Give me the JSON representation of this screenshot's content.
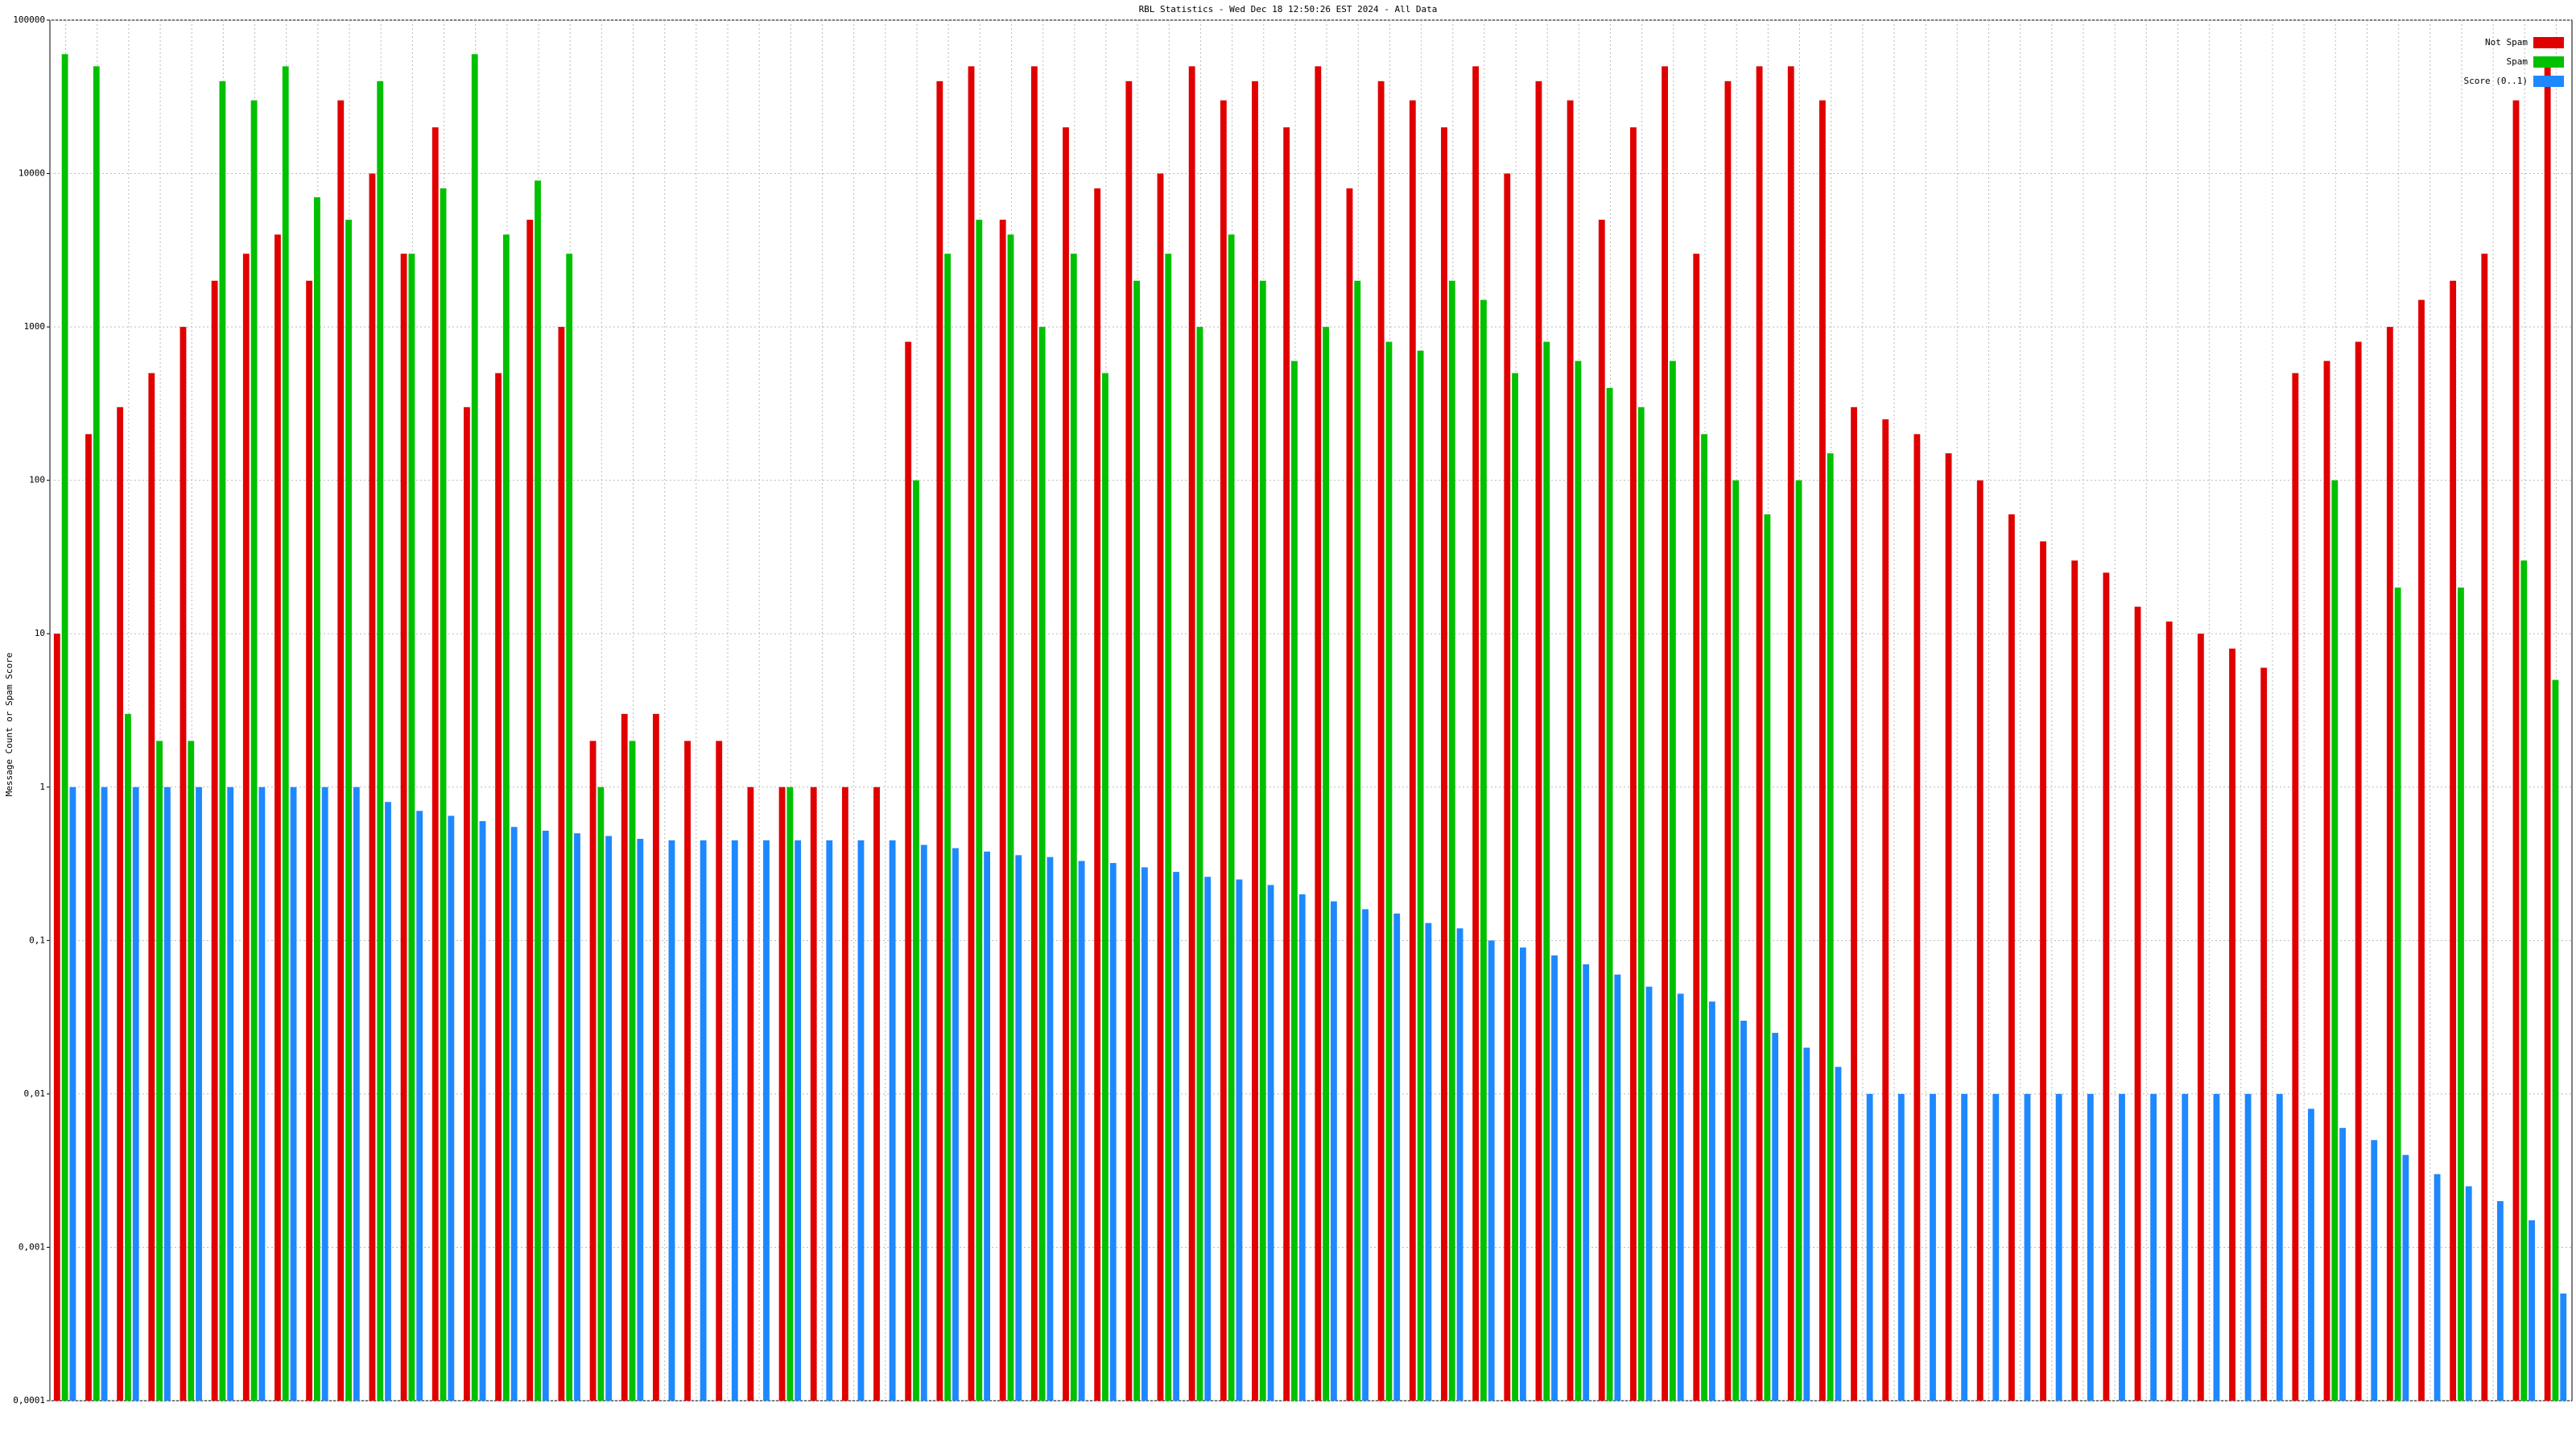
{
  "chart_data": {
    "type": "bar",
    "title": "RBL Statistics - Wed Dec 18 12:50:26 EST 2024 - All Data",
    "y_label": "Message Count or Spam Score",
    "log_scale": true,
    "grid": true,
    "legend": "top-right",
    "ylim": [
      0.0001,
      100000
    ],
    "yticks": [
      {
        "value": 0.0001,
        "label": "0,0001"
      },
      {
        "value": 0.001,
        "label": "0,001"
      },
      {
        "value": 0.01,
        "label": "0,01"
      },
      {
        "value": 0.1,
        "label": "0,1"
      },
      1,
      10,
      100,
      1000,
      10000,
      100000
    ],
    "categories": [
      null,
      null,
      null,
      null,
      null,
      null,
      null,
      null,
      null,
      null,
      null,
      null,
      null,
      null,
      null,
      null,
      null,
      null,
      null,
      null,
      null,
      null,
      null,
      null,
      null,
      null,
      null,
      null,
      null,
      null,
      null,
      null,
      null,
      null,
      null,
      null,
      null,
      null,
      null,
      null,
      null,
      null,
      null,
      null,
      null,
      null,
      null,
      null,
      null,
      null,
      null,
      null,
      null,
      null,
      null,
      null,
      null,
      null,
      null,
      null,
      null,
      null,
      null,
      null,
      null,
      null,
      null,
      null,
      null,
      null,
      null,
      null,
      null,
      null,
      null,
      null,
      null,
      null,
      null,
      null
    ],
    "series": [
      {
        "name": "Not Spam",
        "color": "#e00000",
        "values": [
          10,
          200,
          300,
          500,
          1000,
          2000,
          3000,
          4000,
          2000,
          30000,
          10000,
          3000,
          20000,
          300,
          500,
          5000,
          1000,
          2,
          3,
          3,
          2,
          2,
          1,
          1,
          1,
          1,
          1,
          800,
          40000,
          50000,
          5000,
          50000,
          20000,
          8000,
          40000,
          10000,
          50000,
          30000,
          40000,
          20000,
          50000,
          8000,
          40000,
          30000,
          20000,
          50000,
          10000,
          40000,
          30000,
          5000,
          20000,
          50000,
          3000,
          40000,
          50000,
          50000,
          30000,
          300,
          250,
          200,
          150,
          100,
          60,
          40,
          30,
          25,
          15,
          12,
          10,
          8,
          6,
          500,
          600,
          800,
          1000,
          1500,
          2000,
          3000,
          30000,
          50000
        ]
      },
      {
        "name": "Spam",
        "color": "#00c000",
        "values": [
          60000,
          50000,
          3,
          2,
          2,
          40000,
          30000,
          50000,
          7000,
          5000,
          40000,
          3000,
          8000,
          60000,
          4000,
          9000,
          3000,
          1,
          2,
          null,
          null,
          null,
          null,
          1,
          null,
          null,
          null,
          100,
          3000,
          5000,
          4000,
          1000,
          3000,
          500,
          2000,
          3000,
          1000,
          4000,
          2000,
          600,
          1000,
          2000,
          800,
          700,
          2000,
          1500,
          500,
          800,
          600,
          400,
          300,
          600,
          200,
          100,
          60,
          100,
          150,
          null,
          null,
          null,
          null,
          null,
          null,
          null,
          null,
          null,
          null,
          null,
          null,
          null,
          null,
          null,
          100,
          null,
          20,
          null,
          20,
          null,
          30,
          5
        ]
      },
      {
        "name": "Score (0..1)",
        "color": "#1e88ff",
        "values": [
          1,
          1,
          1,
          1,
          1,
          1,
          1,
          1,
          1,
          1,
          0.8,
          0.7,
          0.65,
          0.6,
          0.55,
          0.52,
          0.5,
          0.48,
          0.46,
          0.45,
          0.45,
          0.45,
          0.45,
          0.45,
          0.45,
          0.45,
          0.45,
          0.42,
          0.4,
          0.38,
          0.36,
          0.35,
          0.33,
          0.32,
          0.3,
          0.28,
          0.26,
          0.25,
          0.23,
          0.2,
          0.18,
          0.16,
          0.15,
          0.13,
          0.12,
          0.1,
          0.09,
          0.08,
          0.07,
          0.06,
          0.05,
          0.045,
          0.04,
          0.03,
          0.025,
          0.02,
          0.015,
          0.01,
          0.01,
          0.01,
          0.01,
          0.01,
          0.01,
          0.01,
          0.01,
          0.01,
          0.01,
          0.01,
          0.01,
          0.01,
          0.01,
          0.008,
          0.006,
          0.005,
          0.004,
          0.003,
          0.0025,
          0.002,
          0.0015,
          0.0005
        ]
      }
    ]
  }
}
